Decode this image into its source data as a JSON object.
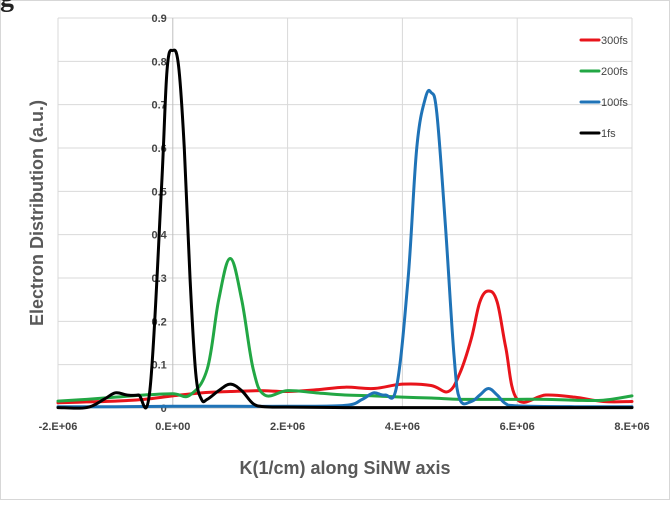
{
  "top_fragment": "g",
  "chart_data": {
    "type": "line",
    "title": "",
    "xlabel": "K(1/cm) along SiNW axis",
    "ylabel": "Electron Distribution (a.u.)",
    "xlim": [
      -2000000,
      8000000
    ],
    "ylim": [
      0,
      0.9
    ],
    "grid": true,
    "legend": "top-right",
    "x_ticks": [
      -2000000,
      0,
      2000000,
      4000000,
      6000000,
      8000000
    ],
    "x_tick_labels": [
      "-2.E+06",
      "0.E+00",
      "2.E+06",
      "4.E+06",
      "6.E+06",
      "8.E+06"
    ],
    "y_ticks": [
      0,
      0.1,
      0.2,
      0.3,
      0.4,
      0.5,
      0.6,
      0.7,
      0.8,
      0.9
    ],
    "y_tick_labels": [
      "0",
      "0.1",
      "0.2",
      "0.3",
      "0.4",
      "0.5",
      "0.6",
      "0.7",
      "0.8",
      "0.9"
    ],
    "series": [
      {
        "name": "300fs",
        "color": "#e8141b",
        "x": [
          -2000000,
          -1500000,
          -1000000,
          -500000,
          0,
          500000,
          1000000,
          1500000,
          2000000,
          2500000,
          3000000,
          3500000,
          4000000,
          4500000,
          4800000,
          5000000,
          5200000,
          5350000,
          5500000,
          5650000,
          5800000,
          6000000,
          6500000,
          7000000,
          7500000,
          8000000
        ],
        "y": [
          0.012,
          0.014,
          0.016,
          0.02,
          0.028,
          0.035,
          0.038,
          0.04,
          0.038,
          0.042,
          0.048,
          0.045,
          0.055,
          0.052,
          0.038,
          0.08,
          0.16,
          0.245,
          0.27,
          0.245,
          0.14,
          0.02,
          0.03,
          0.025,
          0.015,
          0.015
        ]
      },
      {
        "name": "200fs",
        "color": "#22a744",
        "x": [
          -2000000,
          -1500000,
          -1000000,
          -500000,
          0,
          300000,
          600000,
          800000,
          1000000,
          1200000,
          1400000,
          1600000,
          2000000,
          2500000,
          3000000,
          3500000,
          4000000,
          4500000,
          5000000,
          5500000,
          6000000,
          6500000,
          7000000,
          7500000,
          8000000
        ],
        "y": [
          0.016,
          0.02,
          0.025,
          0.03,
          0.033,
          0.03,
          0.09,
          0.25,
          0.345,
          0.25,
          0.09,
          0.03,
          0.04,
          0.035,
          0.03,
          0.028,
          0.025,
          0.023,
          0.02,
          0.02,
          0.02,
          0.02,
          0.018,
          0.018,
          0.028
        ]
      },
      {
        "name": "100fs",
        "color": "#1f73b7",
        "x": [
          -2000000,
          -1000000,
          0,
          1000000,
          2000000,
          3000000,
          3300000,
          3500000,
          3700000,
          3900000,
          4100000,
          4250000,
          4400000,
          4500000,
          4600000,
          4750000,
          4900000,
          5000000,
          5200000,
          5350000,
          5500000,
          5650000,
          5800000,
          6000000,
          7000000,
          8000000
        ],
        "y": [
          0.003,
          0.003,
          0.004,
          0.004,
          0.004,
          0.006,
          0.02,
          0.035,
          0.03,
          0.05,
          0.3,
          0.6,
          0.715,
          0.728,
          0.68,
          0.42,
          0.12,
          0.02,
          0.015,
          0.03,
          0.045,
          0.03,
          0.01,
          0.005,
          0.003,
          0.003
        ]
      },
      {
        "name": "1fs",
        "color": "#000000",
        "x": [
          -2000000,
          -1500000,
          -1200000,
          -1000000,
          -800000,
          -600000,
          -400000,
          -200000,
          -100000,
          0,
          100000,
          200000,
          300000,
          400000,
          500000,
          600000,
          800000,
          1000000,
          1200000,
          1400000,
          1600000,
          2000000,
          3000000,
          4000000,
          5000000,
          6000000,
          7000000,
          8000000
        ],
        "y": [
          0.001,
          0.001,
          0.02,
          0.035,
          0.03,
          0.03,
          0.04,
          0.5,
          0.78,
          0.825,
          0.79,
          0.6,
          0.3,
          0.08,
          0.02,
          0.02,
          0.04,
          0.055,
          0.04,
          0.01,
          0.003,
          0.002,
          0.001,
          0.001,
          0.001,
          0.001,
          0.001,
          0.001
        ]
      }
    ]
  }
}
